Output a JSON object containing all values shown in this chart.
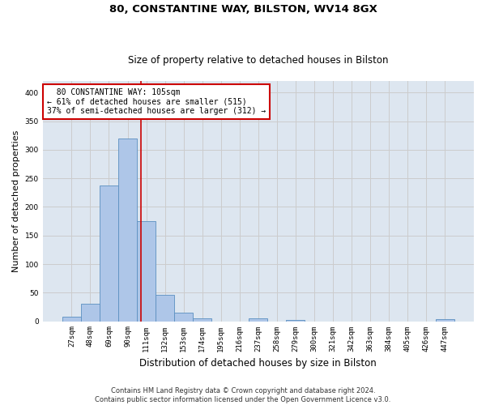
{
  "title1": "80, CONSTANTINE WAY, BILSTON, WV14 8GX",
  "title2": "Size of property relative to detached houses in Bilston",
  "xlabel": "Distribution of detached houses by size in Bilston",
  "ylabel": "Number of detached properties",
  "all_labels": [
    "27sqm",
    "48sqm",
    "69sqm",
    "90sqm",
    "111sqm",
    "132sqm",
    "153sqm",
    "174sqm",
    "195sqm",
    "216sqm",
    "237sqm",
    "258sqm",
    "279sqm",
    "300sqm",
    "321sqm",
    "342sqm",
    "363sqm",
    "384sqm",
    "405sqm",
    "426sqm",
    "447sqm"
  ],
  "bar_values": [
    8,
    31,
    237,
    319,
    175,
    46,
    15,
    5,
    0,
    0,
    5,
    0,
    2,
    0,
    0,
    0,
    0,
    0,
    0,
    0,
    3
  ],
  "bar_color": "#aec6e8",
  "bar_edge_color": "#5a8fc0",
  "property_label": "80 CONSTANTINE WAY: 105sqm",
  "pct_smaller": 61,
  "count_smaller": 515,
  "pct_larger_semi": 37,
  "count_larger_semi": 312,
  "vline_color": "#cc0000",
  "annotation_box_color": "#ffffff",
  "annotation_box_edge_color": "#cc0000",
  "grid_color": "#cccccc",
  "background_color": "#dde6f0",
  "ylim": [
    0,
    420
  ],
  "yticks": [
    0,
    50,
    100,
    150,
    200,
    250,
    300,
    350,
    400
  ],
  "footer": "Contains HM Land Registry data © Crown copyright and database right 2024.\nContains public sector information licensed under the Open Government Licence v3.0.",
  "title1_fontsize": 9.5,
  "title2_fontsize": 8.5,
  "ylabel_fontsize": 8,
  "xlabel_fontsize": 8.5,
  "tick_fontsize": 6.5,
  "annotation_fontsize": 7,
  "footer_fontsize": 6
}
